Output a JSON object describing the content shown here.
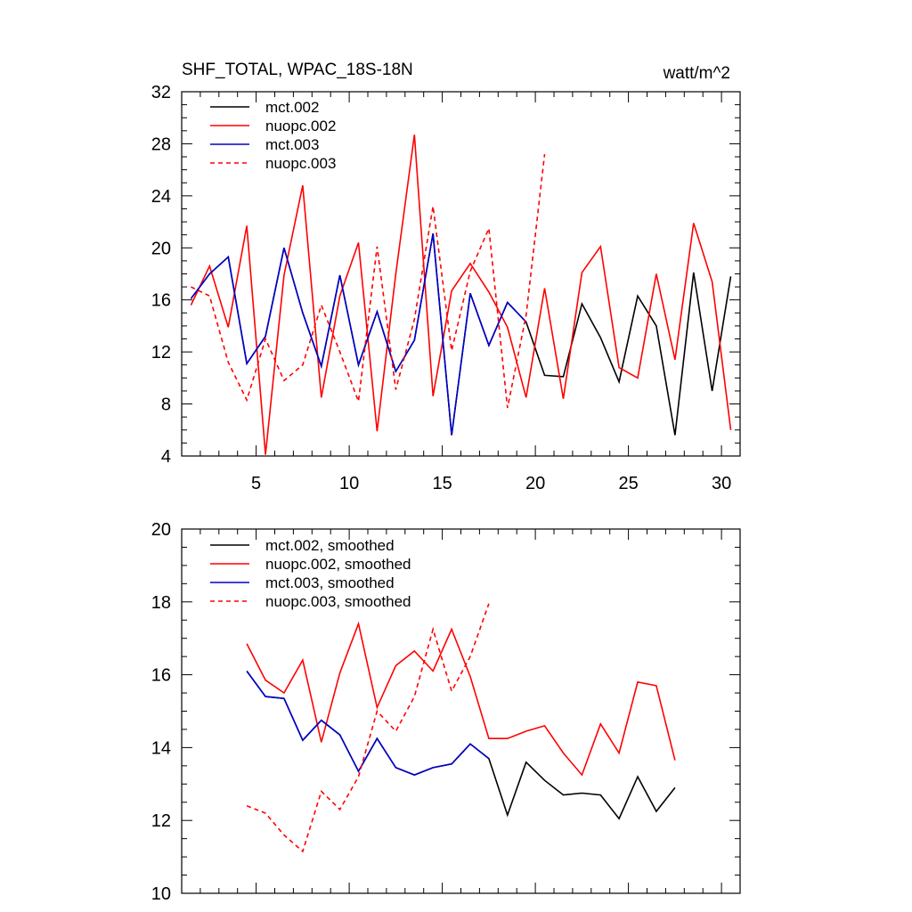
{
  "title": "SHF_TOTAL, WPAC_18S-18N",
  "units": "watt/m^2",
  "colors": {
    "black": "#000000",
    "red": "#ff0000",
    "blue": "#0000cc"
  },
  "chart_data": [
    {
      "type": "line",
      "title": "SHF_TOTAL, WPAC_18S-18N",
      "units": "watt/m^2",
      "xlim": [
        1,
        31
      ],
      "ylim": [
        4,
        32
      ],
      "xticks": [
        5,
        10,
        15,
        20,
        25,
        30
      ],
      "xtick_labels": [
        "5",
        "10",
        "15",
        "20",
        "25",
        "30"
      ],
      "yticks": [
        4,
        8,
        12,
        16,
        20,
        24,
        28,
        32
      ],
      "ytick_labels": [
        "4",
        "8",
        "12",
        "16",
        "20",
        "24",
        "28",
        "32"
      ],
      "series": [
        {
          "name": "mct.002",
          "color": "#000000",
          "dash": false,
          "x": [
            1.5,
            2.5,
            3.5,
            4.5,
            5.5,
            6.5,
            7.5,
            8.5,
            9.5,
            10.5,
            11.5,
            12.5,
            13.5,
            14.5,
            15.5,
            16.5,
            17.5,
            18.5,
            19.5,
            20.5,
            21.5,
            22.5,
            23.5,
            24.5,
            25.5,
            26.5,
            27.5,
            28.5,
            29.5,
            30.5
          ],
          "values": [
            16.1,
            18.0,
            19.3,
            11.1,
            13.2,
            20.0,
            15.0,
            10.9,
            17.9,
            11.0,
            15.1,
            10.5,
            12.9,
            21.1,
            5.6,
            16.5,
            12.5,
            15.8,
            14.3,
            10.2,
            10.1,
            15.7,
            13.1,
            9.7,
            16.3,
            14.0,
            5.6,
            18.1,
            9.0,
            17.8
          ]
        },
        {
          "name": "nuopc.002",
          "color": "#ff0000",
          "dash": false,
          "x": [
            1.5,
            2.5,
            3.5,
            4.5,
            5.5,
            6.5,
            7.5,
            8.5,
            9.5,
            10.5,
            11.5,
            12.5,
            13.5,
            14.5,
            15.5,
            16.5,
            17.5,
            18.5,
            19.5,
            20.5,
            21.5,
            22.5,
            23.5,
            24.5,
            25.5,
            26.5,
            27.5,
            28.5,
            29.5,
            30.5
          ],
          "values": [
            15.6,
            18.6,
            13.9,
            21.7,
            4.1,
            17.9,
            24.8,
            8.5,
            16.3,
            20.4,
            5.9,
            18.0,
            28.7,
            8.6,
            16.7,
            18.8,
            16.6,
            13.9,
            8.5,
            16.9,
            8.4,
            18.1,
            20.1,
            10.8,
            10.0,
            18.0,
            11.4,
            21.9,
            17.4,
            6.0
          ]
        },
        {
          "name": "mct.003",
          "color": "#0000cc",
          "dash": false,
          "x": [
            1.5,
            2.5,
            3.5,
            4.5,
            5.5,
            6.5,
            7.5,
            8.5,
            9.5,
            10.5,
            11.5,
            12.5,
            13.5,
            14.5,
            15.5,
            16.5,
            17.5,
            18.5,
            19.5
          ],
          "values": [
            16.1,
            18.0,
            19.3,
            11.1,
            13.2,
            20.0,
            15.0,
            10.9,
            17.9,
            11.0,
            15.1,
            10.5,
            12.9,
            21.1,
            5.6,
            16.5,
            12.5,
            15.8,
            14.3
          ]
        },
        {
          "name": "nuopc.003",
          "color": "#ff0000",
          "dash": true,
          "x": [
            1.5,
            2.5,
            3.5,
            4.5,
            5.5,
            6.5,
            7.5,
            8.5,
            9.5,
            10.5,
            11.5,
            12.5,
            13.5,
            14.5,
            15.5,
            16.5,
            17.5,
            18.5,
            19.5,
            20.5
          ],
          "values": [
            17.0,
            16.3,
            11.2,
            8.3,
            13.0,
            9.8,
            11.0,
            15.6,
            12.0,
            8.2,
            20.1,
            9.1,
            14.5,
            23.2,
            12.1,
            18.2,
            21.5,
            7.7,
            14.8,
            27.2
          ]
        }
      ]
    },
    {
      "type": "line",
      "title": "",
      "xlim": [
        1,
        31
      ],
      "ylim": [
        10,
        20
      ],
      "xticks": [
        5,
        10,
        15,
        20,
        25,
        30
      ],
      "xtick_labels": [],
      "yticks": [
        10,
        12,
        14,
        16,
        18,
        20
      ],
      "ytick_labels": [
        "10",
        "12",
        "14",
        "16",
        "18",
        "20"
      ],
      "series": [
        {
          "name": "mct.002, smoothed",
          "color": "#000000",
          "dash": false,
          "x": [
            4.5,
            5.5,
            6.5,
            7.5,
            8.5,
            9.5,
            10.5,
            11.5,
            12.5,
            13.5,
            14.5,
            15.5,
            16.5,
            17.5,
            18.5,
            19.5,
            20.5,
            21.5,
            22.5,
            23.5,
            24.5,
            25.5,
            26.5,
            27.5
          ],
          "values": [
            16.1,
            15.4,
            15.35,
            14.2,
            14.75,
            14.35,
            13.35,
            14.25,
            13.45,
            13.25,
            13.45,
            13.55,
            14.1,
            13.7,
            12.15,
            13.6,
            13.1,
            12.7,
            12.75,
            12.7,
            12.05,
            13.2,
            12.25,
            12.9
          ]
        },
        {
          "name": "nuopc.002, smoothed",
          "color": "#ff0000",
          "dash": false,
          "x": [
            4.5,
            5.5,
            6.5,
            7.5,
            8.5,
            9.5,
            10.5,
            11.5,
            12.5,
            13.5,
            14.5,
            15.5,
            16.5,
            17.5,
            18.5,
            19.5,
            20.5,
            21.5,
            22.5,
            23.5,
            24.5,
            25.5,
            26.5,
            27.5
          ],
          "values": [
            16.85,
            15.85,
            15.5,
            16.4,
            14.15,
            16.05,
            17.4,
            15.1,
            16.25,
            16.65,
            16.1,
            17.25,
            15.95,
            14.25,
            14.25,
            14.45,
            14.6,
            13.85,
            13.25,
            14.65,
            13.85,
            15.8,
            15.7,
            13.65
          ]
        },
        {
          "name": "mct.003, smoothed",
          "color": "#0000cc",
          "dash": false,
          "x": [
            4.5,
            5.5,
            6.5,
            7.5,
            8.5,
            9.5,
            10.5,
            11.5,
            12.5,
            13.5,
            14.5,
            15.5,
            16.5,
            17.5
          ],
          "values": [
            16.1,
            15.4,
            15.35,
            14.2,
            14.75,
            14.35,
            13.35,
            14.25,
            13.45,
            13.25,
            13.45,
            13.55,
            14.1,
            13.7
          ]
        },
        {
          "name": "nuopc.003, smoothed",
          "color": "#ff0000",
          "dash": true,
          "x": [
            4.5,
            5.5,
            6.5,
            7.5,
            8.5,
            9.5,
            10.5,
            11.5,
            12.5,
            13.5,
            14.5,
            15.5,
            16.5,
            17.5
          ],
          "values": [
            12.4,
            12.2,
            11.6,
            11.15,
            12.8,
            12.3,
            13.2,
            15.0,
            14.45,
            15.4,
            17.25,
            15.55,
            16.5,
            17.95
          ]
        }
      ]
    }
  ]
}
